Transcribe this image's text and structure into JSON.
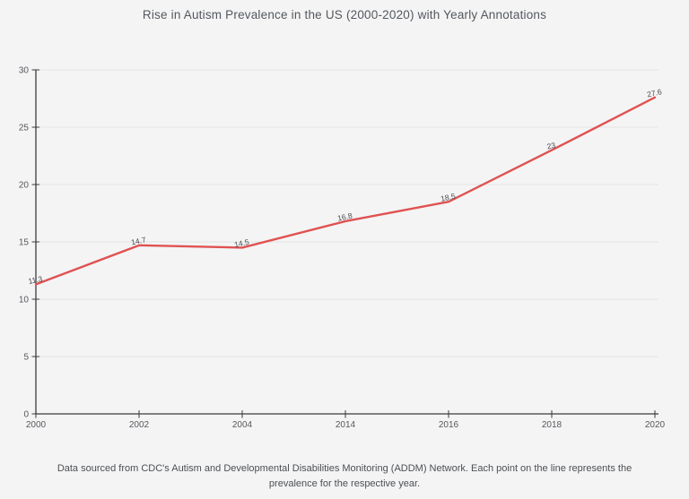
{
  "title": "Rise in Autism Prevalence in the US (2000-2020) with Yearly Annotations",
  "caption": "Data sourced from CDC's Autism and Developmental Disabilities Monitoring (ADDM) Network. Each point on the line represents the prevalence for the respective year.",
  "chart_data": {
    "type": "line",
    "title": "Rise in Autism Prevalence in the US (2000-2020) with Yearly Annotations",
    "categories": [
      "2000",
      "2002",
      "2004",
      "2014",
      "2016",
      "2018",
      "2020"
    ],
    "values": [
      11.3,
      14.7,
      14.5,
      16.8,
      18.5,
      23,
      27.6
    ],
    "point_labels": [
      "11.3",
      "14.7",
      "14.5",
      "16.8",
      "18.5",
      "23",
      "27.6"
    ],
    "xlabel": "",
    "ylabel": "",
    "ylim": [
      0,
      30
    ],
    "yticks": [
      0,
      5,
      10,
      15,
      20,
      25,
      30
    ],
    "grid": "horizontal",
    "legend": "none",
    "line_color": "#e05252"
  },
  "colors": {
    "background": "#f4f4f5",
    "axis": "#3c3c3c",
    "gridline": "#e3e3e4",
    "tick_text": "#55585c",
    "annotation_text": "#45484c",
    "title_text": "#54585c"
  }
}
